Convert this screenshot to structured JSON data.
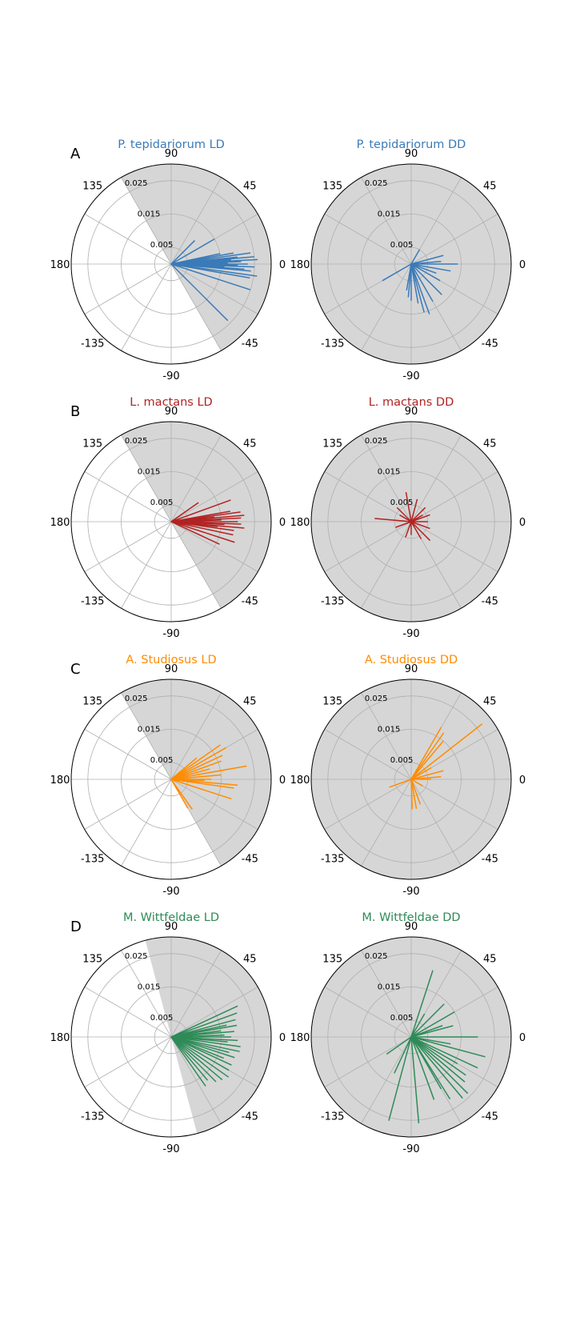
{
  "figure": {
    "colors": {
      "shade": "#d6d6d6",
      "grid": "#b0b0b0",
      "text": "#000000"
    }
  },
  "chart_data": [
    {
      "type": "polar-vector",
      "panel_label": "A",
      "title": "P. tepidariorum LD",
      "color": "#3a7ab8",
      "shade": "sector",
      "shade_from_deg": -60,
      "shade_to_deg": 120,
      "angle_ticks": [
        "0",
        "45",
        "90",
        "135",
        "180",
        "-135",
        "-90",
        "-45"
      ],
      "radial_ticks": [
        "0.005",
        "0.015",
        "0.025"
      ],
      "radial_tick_values": [
        0.005,
        0.015,
        0.025
      ],
      "rmax": 0.03,
      "vectors": [
        {
          "angle": 5,
          "r": 0.025
        },
        {
          "angle": 8,
          "r": 0.024
        },
        {
          "angle": 3,
          "r": 0.026
        },
        {
          "angle": 0,
          "r": 0.023
        },
        {
          "angle": -2,
          "r": 0.025
        },
        {
          "angle": -5,
          "r": 0.024
        },
        {
          "angle": -8,
          "r": 0.026
        },
        {
          "angle": -4,
          "r": 0.022
        },
        {
          "angle": 2,
          "r": 0.021
        },
        {
          "angle": 6,
          "r": 0.02
        },
        {
          "angle": 10,
          "r": 0.019
        },
        {
          "angle": -10,
          "r": 0.024
        },
        {
          "angle": -18,
          "r": 0.025
        },
        {
          "angle": -45,
          "r": 0.024
        },
        {
          "angle": 12,
          "r": 0.015
        },
        {
          "angle": 30,
          "r": 0.015
        },
        {
          "angle": 45,
          "r": 0.01
        },
        {
          "angle": 1,
          "r": 0.017
        },
        {
          "angle": -1,
          "r": 0.02
        },
        {
          "angle": 4,
          "r": 0.018
        },
        {
          "angle": -3,
          "r": 0.016
        }
      ]
    },
    {
      "type": "polar-vector",
      "panel_label": "",
      "title": "P. tepidariorum DD",
      "color": "#3a7ab8",
      "shade": "full",
      "angle_ticks": [
        "0",
        "45",
        "90",
        "135",
        "180",
        "-135",
        "-90",
        "-45"
      ],
      "radial_ticks": [
        "0.005",
        "0.015",
        "0.025"
      ],
      "radial_tick_values": [
        0.005,
        0.015,
        0.025
      ],
      "rmax": 0.03,
      "vectors": [
        {
          "angle": 0,
          "r": 0.014
        },
        {
          "angle": -10,
          "r": 0.012
        },
        {
          "angle": 15,
          "r": 0.01
        },
        {
          "angle": -30,
          "r": 0.01
        },
        {
          "angle": -45,
          "r": 0.013
        },
        {
          "angle": -60,
          "r": 0.013
        },
        {
          "angle": -75,
          "r": 0.015
        },
        {
          "angle": -70,
          "r": 0.016
        },
        {
          "angle": -90,
          "r": 0.011
        },
        {
          "angle": -95,
          "r": 0.01
        },
        {
          "angle": -80,
          "r": 0.012
        },
        {
          "angle": 210,
          "r": 0.01
        },
        {
          "angle": 60,
          "r": 0.005
        },
        {
          "angle": -20,
          "r": 0.008
        },
        {
          "angle": 5,
          "r": 0.009
        },
        {
          "angle": -100,
          "r": 0.008
        }
      ]
    },
    {
      "type": "polar-vector",
      "panel_label": "B",
      "title": "L. mactans LD",
      "color": "#b22222",
      "shade": "sector",
      "shade_from_deg": -60,
      "shade_to_deg": 120,
      "angle_ticks": [
        "0",
        "45",
        "90",
        "135",
        "180",
        "-135",
        "-90",
        "-45"
      ],
      "radial_ticks": [
        "0.005",
        "0.015",
        "0.025"
      ],
      "radial_tick_values": [
        0.005,
        0.015,
        0.025
      ],
      "rmax": 0.03,
      "vectors": [
        {
          "angle": 8,
          "r": 0.021
        },
        {
          "angle": 5,
          "r": 0.022
        },
        {
          "angle": 3,
          "r": 0.021
        },
        {
          "angle": 0,
          "r": 0.02
        },
        {
          "angle": -2,
          "r": 0.021
        },
        {
          "angle": -5,
          "r": 0.022
        },
        {
          "angle": -8,
          "r": 0.019
        },
        {
          "angle": -12,
          "r": 0.019
        },
        {
          "angle": -18,
          "r": 0.02
        },
        {
          "angle": -25,
          "r": 0.016
        },
        {
          "angle": 20,
          "r": 0.019
        },
        {
          "angle": 35,
          "r": 0.01
        },
        {
          "angle": 10,
          "r": 0.018
        },
        {
          "angle": -3,
          "r": 0.016
        },
        {
          "angle": 2,
          "r": 0.015
        },
        {
          "angle": 6,
          "r": 0.013
        },
        {
          "angle": -6,
          "r": 0.014
        }
      ]
    },
    {
      "type": "polar-vector",
      "panel_label": "",
      "title": "L. mactans DD",
      "color": "#b22222",
      "shade": "full",
      "angle_ticks": [
        "0",
        "45",
        "90",
        "135",
        "180",
        "-135",
        "-90",
        "-45"
      ],
      "radial_ticks": [
        "0.005",
        "0.015",
        "0.025"
      ],
      "radial_tick_values": [
        0.005,
        0.015,
        0.025
      ],
      "rmax": 0.03,
      "vectors": [
        {
          "angle": 175,
          "r": 0.011
        },
        {
          "angle": 135,
          "r": 0.006
        },
        {
          "angle": 100,
          "r": 0.009
        },
        {
          "angle": 75,
          "r": 0.007
        },
        {
          "angle": 45,
          "r": 0.006
        },
        {
          "angle": 20,
          "r": 0.006
        },
        {
          "angle": 0,
          "r": 0.005
        },
        {
          "angle": -20,
          "r": 0.006
        },
        {
          "angle": -45,
          "r": 0.008
        },
        {
          "angle": -60,
          "r": 0.006
        },
        {
          "angle": -90,
          "r": 0.004
        },
        {
          "angle": -110,
          "r": 0.005
        },
        {
          "angle": 200,
          "r": 0.005
        },
        {
          "angle": 150,
          "r": 0.004
        },
        {
          "angle": 30,
          "r": 0.004
        }
      ]
    },
    {
      "type": "polar-vector",
      "panel_label": "C",
      "title": "A. Studiosus LD",
      "color": "#ff8c00",
      "shade": "sector",
      "shade_from_deg": -60,
      "shade_to_deg": 120,
      "angle_ticks": [
        "0",
        "45",
        "90",
        "135",
        "180",
        "-135",
        "-90",
        "-45"
      ],
      "radial_ticks": [
        "0.005",
        "0.015",
        "0.025"
      ],
      "radial_tick_values": [
        0.005,
        0.015,
        0.025
      ],
      "rmax": 0.03,
      "vectors": [
        {
          "angle": 35,
          "r": 0.018
        },
        {
          "angle": 30,
          "r": 0.019
        },
        {
          "angle": 25,
          "r": 0.017
        },
        {
          "angle": 20,
          "r": 0.016
        },
        {
          "angle": 10,
          "r": 0.023
        },
        {
          "angle": 5,
          "r": 0.015
        },
        {
          "angle": 0,
          "r": 0.012
        },
        {
          "angle": -5,
          "r": 0.02
        },
        {
          "angle": -8,
          "r": 0.019
        },
        {
          "angle": -18,
          "r": 0.019
        },
        {
          "angle": -55,
          "r": 0.011
        },
        {
          "angle": -60,
          "r": 0.01
        },
        {
          "angle": 15,
          "r": 0.012
        },
        {
          "angle": 40,
          "r": 0.01
        },
        {
          "angle": -2,
          "r": 0.01
        }
      ]
    },
    {
      "type": "polar-vector",
      "panel_label": "",
      "title": "A. Studiosus DD",
      "color": "#ff8c00",
      "shade": "full",
      "angle_ticks": [
        "0",
        "45",
        "90",
        "135",
        "180",
        "-135",
        "-90",
        "-45"
      ],
      "radial_ticks": [
        "0.005",
        "0.015",
        "0.025"
      ],
      "radial_tick_values": [
        0.005,
        0.015,
        0.025
      ],
      "rmax": 0.03,
      "vectors": [
        {
          "angle": 38,
          "r": 0.027
        },
        {
          "angle": 55,
          "r": 0.017
        },
        {
          "angle": 60,
          "r": 0.018
        },
        {
          "angle": 50,
          "r": 0.015
        },
        {
          "angle": 15,
          "r": 0.01
        },
        {
          "angle": 5,
          "r": 0.009
        },
        {
          "angle": 0,
          "r": 0.006
        },
        {
          "angle": 200,
          "r": 0.007
        },
        {
          "angle": -80,
          "r": 0.009
        },
        {
          "angle": -88,
          "r": 0.009
        },
        {
          "angle": -70,
          "r": 0.008
        },
        {
          "angle": 30,
          "r": 0.007
        },
        {
          "angle": -30,
          "r": 0.004
        }
      ]
    },
    {
      "type": "polar-vector",
      "panel_label": "D",
      "title": "M. Wittfeldae LD",
      "color": "#2e8b57",
      "shade": "sector",
      "shade_from_deg": -75,
      "shade_to_deg": 105,
      "angle_ticks": [
        "0",
        "45",
        "90",
        "135",
        "180",
        "-135",
        "-90",
        "-45"
      ],
      "radial_ticks": [
        "0.005",
        "0.015",
        "0.025"
      ],
      "radial_tick_values": [
        0.005,
        0.015,
        0.025
      ],
      "rmax": 0.03,
      "vectors": [
        {
          "angle": 25,
          "r": 0.022
        },
        {
          "angle": 20,
          "r": 0.021
        },
        {
          "angle": 15,
          "r": 0.02
        },
        {
          "angle": 10,
          "r": 0.02
        },
        {
          "angle": 5,
          "r": 0.019
        },
        {
          "angle": 0,
          "r": 0.018
        },
        {
          "angle": -3,
          "r": 0.02
        },
        {
          "angle": -8,
          "r": 0.021
        },
        {
          "angle": -12,
          "r": 0.021
        },
        {
          "angle": -18,
          "r": 0.02
        },
        {
          "angle": -25,
          "r": 0.02
        },
        {
          "angle": -30,
          "r": 0.02
        },
        {
          "angle": -35,
          "r": 0.021
        },
        {
          "angle": -40,
          "r": 0.02
        },
        {
          "angle": -45,
          "r": 0.019
        },
        {
          "angle": -50,
          "r": 0.017
        },
        {
          "angle": -55,
          "r": 0.018
        },
        {
          "angle": 12,
          "r": 0.017
        },
        {
          "angle": 2,
          "r": 0.016
        },
        {
          "angle": -5,
          "r": 0.017
        },
        {
          "angle": -15,
          "r": 0.018
        },
        {
          "angle": -22,
          "r": 0.017
        },
        {
          "angle": 7,
          "r": 0.015
        }
      ]
    },
    {
      "type": "polar-vector",
      "panel_label": "",
      "title": "M. Wittfeldae DD",
      "color": "#2e8b57",
      "shade": "full",
      "angle_ticks": [
        "0",
        "45",
        "90",
        "135",
        "180",
        "-135",
        "-90",
        "-45"
      ],
      "radial_ticks": [
        "0.005",
        "0.015",
        "0.025"
      ],
      "radial_tick_values": [
        0.005,
        0.015,
        0.025
      ],
      "rmax": 0.03,
      "vectors": [
        {
          "angle": 72,
          "r": 0.021
        },
        {
          "angle": 45,
          "r": 0.014
        },
        {
          "angle": 30,
          "r": 0.015
        },
        {
          "angle": 15,
          "r": 0.013
        },
        {
          "angle": 0,
          "r": 0.02
        },
        {
          "angle": -15,
          "r": 0.023
        },
        {
          "angle": -25,
          "r": 0.022
        },
        {
          "angle": -35,
          "r": 0.02
        },
        {
          "angle": -40,
          "r": 0.021
        },
        {
          "angle": -45,
          "r": 0.024
        },
        {
          "angle": -50,
          "r": 0.024
        },
        {
          "angle": -58,
          "r": 0.022
        },
        {
          "angle": -70,
          "r": 0.02
        },
        {
          "angle": -85,
          "r": 0.026
        },
        {
          "angle": -105,
          "r": 0.026
        },
        {
          "angle": -115,
          "r": 0.012
        },
        {
          "angle": 215,
          "r": 0.009
        },
        {
          "angle": -60,
          "r": 0.018
        },
        {
          "angle": -30,
          "r": 0.016
        },
        {
          "angle": -10,
          "r": 0.012
        },
        {
          "angle": 20,
          "r": 0.01
        },
        {
          "angle": 60,
          "r": 0.008
        }
      ]
    }
  ]
}
